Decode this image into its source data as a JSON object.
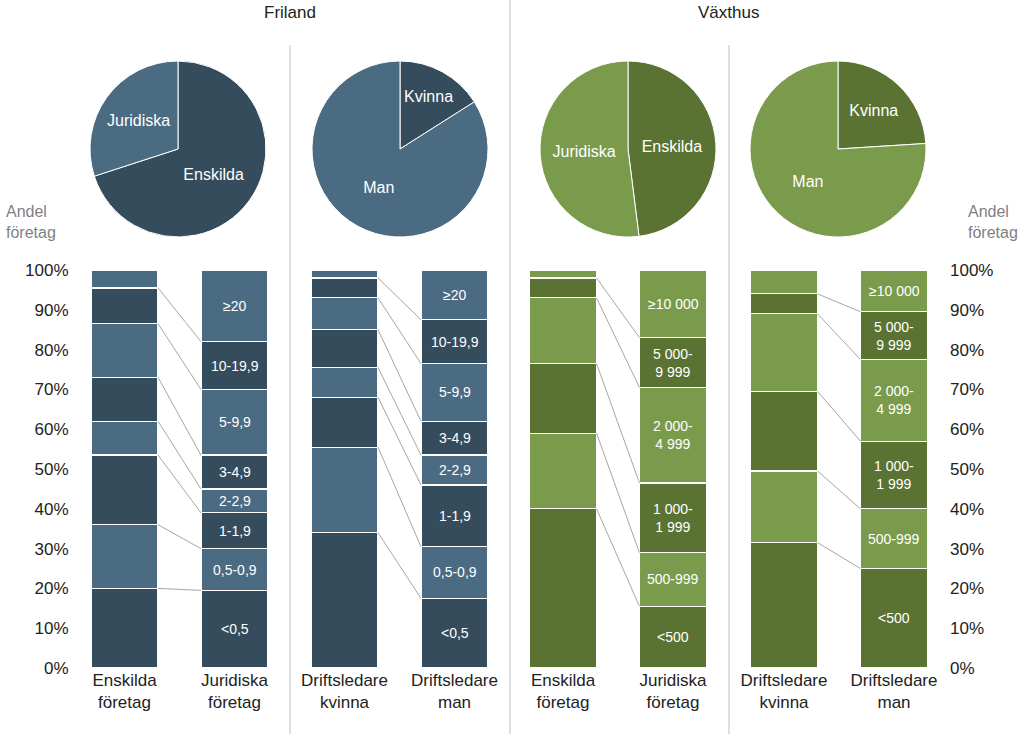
{
  "chart_data": [
    {
      "type": "pie",
      "group": "Friland",
      "categories": [
        "Enskilda",
        "Juridiska"
      ],
      "values": [
        70,
        30
      ],
      "colors": [
        "#344c5c",
        "#4b6b82"
      ]
    },
    {
      "type": "pie",
      "group": "Friland",
      "categories": [
        "Kvinna",
        "Man"
      ],
      "values": [
        16,
        84
      ],
      "colors": [
        "#344c5c",
        "#4b6b82"
      ]
    },
    {
      "type": "pie",
      "group": "Växthus",
      "categories": [
        "Enskilda",
        "Juridiska"
      ],
      "values": [
        48,
        52
      ],
      "colors": [
        "#5b7332",
        "#7a9b4c"
      ]
    },
    {
      "type": "pie",
      "group": "Växthus",
      "categories": [
        "Kvinna",
        "Man"
      ],
      "values": [
        24,
        76
      ],
      "colors": [
        "#5b7332",
        "#7a9b4c"
      ]
    },
    {
      "type": "bar",
      "group": "Friland",
      "stacked": true,
      "grid": false,
      "y_label": "Andel företag",
      "categories": [
        "Enskilda företag",
        "Juridiska företag"
      ],
      "ylim": [
        0,
        100
      ],
      "yticks": [
        {
          "value": 0,
          "label": "0%"
        },
        {
          "value": 10,
          "label": "10%"
        },
        {
          "value": 20,
          "label": "20%"
        },
        {
          "value": 30,
          "label": "30%"
        },
        {
          "value": 40,
          "label": "40%"
        },
        {
          "value": 50,
          "label": "50%"
        },
        {
          "value": 60,
          "label": "60%"
        },
        {
          "value": 70,
          "label": "70%"
        },
        {
          "value": 80,
          "label": "80%"
        },
        {
          "value": 90,
          "label": "90%"
        },
        {
          "value": 100,
          "label": "100%"
        }
      ],
      "series": [
        {
          "name": "<0,5",
          "color": "#344c5c",
          "values": [
            20,
            19.5
          ]
        },
        {
          "name": "0,5-0,9",
          "color": "#4b6b82",
          "values": [
            16,
            10.5
          ]
        },
        {
          "name": "1-1,9",
          "color": "#344c5c",
          "values": [
            17.5,
            9
          ]
        },
        {
          "name": "2-2,9",
          "color": "#4b6b82",
          "values": [
            8.5,
            6
          ]
        },
        {
          "name": "3-4,9",
          "color": "#344c5c",
          "values": [
            11,
            8.5
          ]
        },
        {
          "name": "5-9,9",
          "color": "#4b6b82",
          "values": [
            13.5,
            16.5
          ]
        },
        {
          "name": "10-19,9",
          "color": "#344c5c",
          "values": [
            9,
            12
          ]
        },
        {
          "name": "≥20",
          "color": "#4b6b82",
          "values": [
            4.5,
            18
          ]
        }
      ]
    },
    {
      "type": "bar",
      "group": "Friland",
      "stacked": true,
      "grid": false,
      "tick_labels": "x",
      "categories": [
        "Driftsledare kvinna",
        "Driftsledare man"
      ],
      "ylim": [
        0,
        100
      ],
      "series": [
        {
          "name": "<0,5",
          "color": "#344c5c",
          "values": [
            34,
            17.5
          ]
        },
        {
          "name": "0,5-0,9",
          "color": "#4b6b82",
          "values": [
            21.5,
            13
          ]
        },
        {
          "name": "1-1,9",
          "color": "#344c5c",
          "values": [
            12.5,
            15.5
          ]
        },
        {
          "name": "2-2,9",
          "color": "#4b6b82",
          "values": [
            7.5,
            7.5
          ]
        },
        {
          "name": "3-4,9",
          "color": "#344c5c",
          "values": [
            9.5,
            8.5
          ]
        },
        {
          "name": "5-9,9",
          "color": "#4b6b82",
          "values": [
            8,
            14.5
          ]
        },
        {
          "name": "10-19,9",
          "color": "#344c5c",
          "values": [
            5,
            11
          ]
        },
        {
          "name": "≥20",
          "color": "#4b6b82",
          "values": [
            2,
            12.5
          ]
        }
      ]
    },
    {
      "type": "bar",
      "group": "Växthus",
      "stacked": true,
      "grid": false,
      "tick_labels": "x",
      "categories": [
        "Enskilda företag",
        "Juridiska företag"
      ],
      "ylim": [
        0,
        100
      ],
      "series": [
        {
          "name": "<500",
          "color": "#5b7332",
          "values": [
            40,
            15.5
          ]
        },
        {
          "name": "500-999",
          "color": "#7a9b4c",
          "values": [
            19,
            13.5
          ]
        },
        {
          "name": "1 000-1 999",
          "color": "#5b7332",
          "values": [
            17.5,
            17.5
          ]
        },
        {
          "name": "2 000-4 999",
          "color": "#7a9b4c",
          "values": [
            16.5,
            24
          ]
        },
        {
          "name": "5 000-9 999",
          "color": "#5b7332",
          "values": [
            5,
            12.5
          ]
        },
        {
          "name": "≥10 000",
          "color": "#7a9b4c",
          "values": [
            2,
            17
          ]
        }
      ]
    },
    {
      "type": "bar",
      "group": "Växthus",
      "stacked": true,
      "grid": false,
      "y_label": "Andel företag",
      "categories": [
        "Driftsledare kvinna",
        "Driftsledare man"
      ],
      "ylim": [
        0,
        100
      ],
      "yticks": [
        {
          "value": 0,
          "label": "0%"
        },
        {
          "value": 10,
          "label": "10%"
        },
        {
          "value": 20,
          "label": "20%"
        },
        {
          "value": 30,
          "label": "30%"
        },
        {
          "value": 40,
          "label": "40%"
        },
        {
          "value": 50,
          "label": "50%"
        },
        {
          "value": 60,
          "label": "60%"
        },
        {
          "value": 70,
          "label": "70%"
        },
        {
          "value": 80,
          "label": "80%"
        },
        {
          "value": 90,
          "label": "90%"
        },
        {
          "value": 100,
          "label": "100%"
        }
      ],
      "series": [
        {
          "name": "<500",
          "color": "#5b7332",
          "values": [
            31.5,
            25
          ]
        },
        {
          "name": "500-999",
          "color": "#7a9b4c",
          "values": [
            18,
            15
          ]
        },
        {
          "name": "1 000-1 999",
          "color": "#5b7332",
          "values": [
            20,
            17
          ]
        },
        {
          "name": "2 000-4 999",
          "color": "#7a9b4c",
          "values": [
            19.5,
            20.5
          ]
        },
        {
          "name": "5 000-9 999",
          "color": "#5b7332",
          "values": [
            5,
            12
          ]
        },
        {
          "name": "≥10 000",
          "color": "#7a9b4c",
          "values": [
            6,
            10.5
          ]
        }
      ]
    }
  ]
}
